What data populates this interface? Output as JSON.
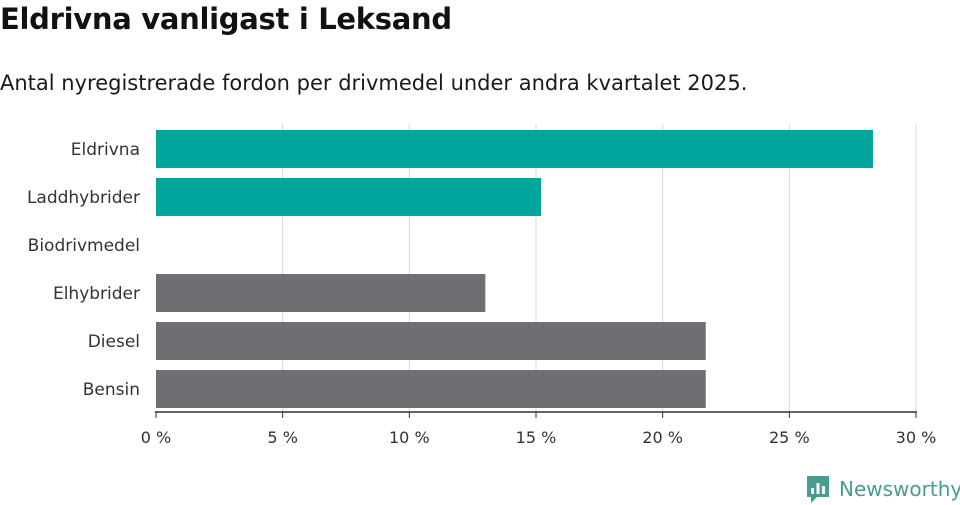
{
  "header": {
    "title": "Eldrivna vanligast i Leksand",
    "subtitle": "Antal nyregistrerade fordon per drivmedel under andra kvartalet 2025."
  },
  "brand": {
    "name": "Newsworthy",
    "icon": "newsworthy-logo-icon",
    "color": "#4a9c92"
  },
  "colors": {
    "highlight": "#00a59b",
    "default": "#6e6e73",
    "grid": "#d9d9d9",
    "axis": "#333333"
  },
  "chart_data": {
    "type": "bar",
    "orientation": "horizontal",
    "title": "Eldrivna vanligast i Leksand",
    "subtitle": "Antal nyregistrerade fordon per drivmedel under andra kvartalet 2025.",
    "categories": [
      "Eldrivna",
      "Laddhybrider",
      "Biodrivmedel",
      "Elhybrider",
      "Diesel",
      "Bensin"
    ],
    "values": [
      28.3,
      15.2,
      0,
      13.0,
      21.7,
      21.7
    ],
    "highlight": [
      true,
      true,
      false,
      false,
      false,
      false
    ],
    "unit": "%",
    "xlim": [
      0,
      30
    ],
    "ticks": [
      0,
      5,
      10,
      15,
      20,
      25,
      30
    ],
    "tick_labels": [
      "0 %",
      "5 %",
      "10 %",
      "15 %",
      "20 %",
      "25 %",
      "30 %"
    ],
    "xlabel": "",
    "ylabel": "",
    "grid": true,
    "legend": "none"
  }
}
